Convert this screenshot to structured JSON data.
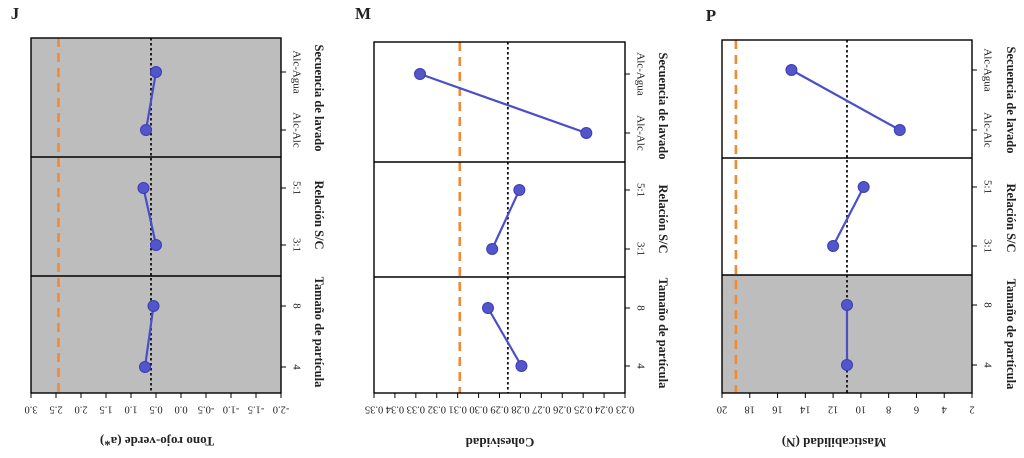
{
  "chart_data": [
    {
      "panel_letter": "J",
      "type": "line",
      "ylabel": "Tono rojo-verde (a*)",
      "yticks": [
        "3.0",
        "2.5",
        "2.0",
        "1.5",
        "1.0",
        "0.5",
        "0.0",
        "-0.5",
        "-1.0",
        "-1.5",
        "-2.0"
      ],
      "ylim": [
        3.0,
        -2.0
      ],
      "ref_dashed_orange": 2.45,
      "ref_dotted_black": 0.6,
      "groups": [
        {
          "name": "Tamaño de partícula",
          "levels": [
            "4",
            "8"
          ],
          "values": [
            0.72,
            0.55
          ],
          "shaded": true
        },
        {
          "name": "Relación S/C",
          "levels": [
            "3:1",
            "5:1"
          ],
          "values": [
            0.5,
            0.75
          ],
          "shaded": true
        },
        {
          "name": "Secuencia de lavado",
          "levels": [
            "Alc-Alc",
            "Alc-Agua"
          ],
          "values": [
            0.7,
            0.5
          ],
          "shaded": true
        }
      ]
    },
    {
      "panel_letter": "M",
      "type": "line",
      "ylabel": "Cohesividad",
      "yticks": [
        "0.35",
        "0.34",
        "0.33",
        "0.32",
        "0.31",
        "0.30",
        "0.29",
        "0.28",
        "0.27",
        "0.26",
        "0.25",
        "0.24",
        "0.23"
      ],
      "ylim": [
        0.35,
        0.23
      ],
      "ref_dashed_orange": 0.309,
      "ref_dotted_black": 0.286,
      "groups": [
        {
          "name": "Tamaño de partícula",
          "levels": [
            "4",
            "8"
          ],
          "values": [
            0.2795,
            0.2955
          ],
          "shaded": false
        },
        {
          "name": "Relación S/C",
          "levels": [
            "3:1",
            "5:1"
          ],
          "values": [
            0.2935,
            0.2805
          ],
          "shaded": false
        },
        {
          "name": "Secuencia de lavado",
          "levels": [
            "Alc-Alc",
            "Alc-Agua"
          ],
          "values": [
            0.2485,
            0.328
          ],
          "shaded": false
        }
      ]
    },
    {
      "panel_letter": "P",
      "type": "line",
      "ylabel": "Masticabilidad (N)",
      "yticks": [
        "20",
        "18",
        "16",
        "14",
        "12",
        "10",
        "8",
        "6",
        "4",
        "2"
      ],
      "ylim": [
        20,
        2
      ],
      "ref_dashed_orange": 19.0,
      "ref_dotted_black": 11.0,
      "groups": [
        {
          "name": "Tamaño de partícula",
          "levels": [
            "4",
            "8"
          ],
          "values": [
            11.0,
            11.0
          ],
          "shaded": true
        },
        {
          "name": "Relación S/C",
          "levels": [
            "3:1",
            "5:1"
          ],
          "values": [
            12.0,
            9.8
          ],
          "shaded": false
        },
        {
          "name": "Secuencia de lavado",
          "levels": [
            "Alc-Alc",
            "Alc-Agua"
          ],
          "values": [
            7.2,
            15.0
          ],
          "shaded": false
        }
      ]
    }
  ],
  "colors": {
    "shade": "#bdbdbd",
    "line": "#4a4fc9",
    "marker": "#5255cc",
    "ref_orange": "#f08a36",
    "ref_black": "#111111"
  }
}
